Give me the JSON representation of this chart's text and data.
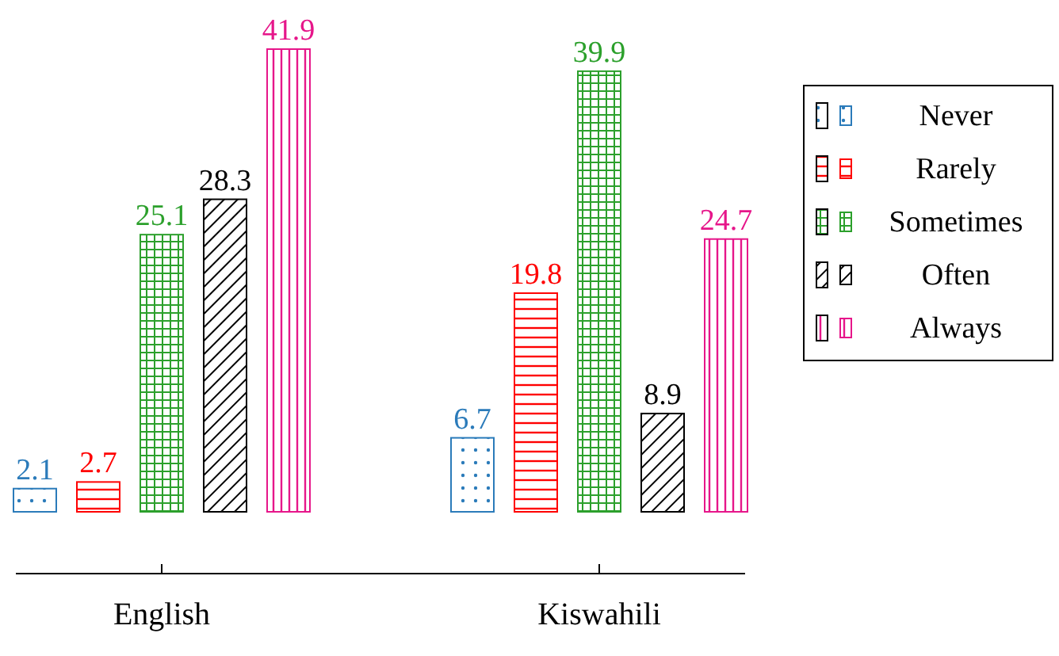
{
  "chart_data": {
    "type": "bar",
    "categories": [
      "English",
      "Kiswahili"
    ],
    "series": [
      {
        "name": "Never",
        "color": "#2b7bba",
        "values": [
          2.1,
          6.7
        ]
      },
      {
        "name": "Rarely",
        "color": "#ff0000",
        "values": [
          2.7,
          19.8
        ]
      },
      {
        "name": "Sometimes",
        "color": "#2ca02c",
        "values": [
          25.1,
          39.9
        ]
      },
      {
        "name": "Often",
        "color": "#000000",
        "values": [
          28.3,
          8.9
        ]
      },
      {
        "name": "Always",
        "color": "#e6168a",
        "values": [
          41.9,
          24.7
        ]
      }
    ],
    "data_labels": true,
    "legend": "right"
  }
}
